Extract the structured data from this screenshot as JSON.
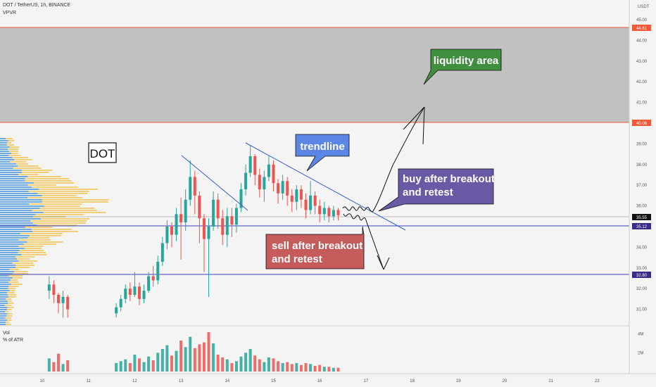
{
  "header": {
    "symbol_line": "DOT / TetherUS, 1h, BINANCE",
    "indicator": "VPVR",
    "currency": "USDT"
  },
  "volume_pane": {
    "label": "Vol",
    "sublabel": "% of ATR",
    "ticks": [
      {
        "label": "4M",
        "value": 4
      },
      {
        "label": "2M",
        "value": 2
      }
    ]
  },
  "colors": {
    "up": "#26a69a",
    "down": "#ef5350",
    "zone_fill": "#b7b7b7",
    "zone_line": "#f05a3a",
    "level_line": "#3f3fb8",
    "trendline": "#3a5bd0",
    "vpvr_blue": "#3d8fd6",
    "vpvr_yellow": "#f2c14e",
    "green_box": "#3f8f3f",
    "blue_box": "#5b86e5",
    "purple_box": "#6a5aa6",
    "red_box": "#c65b5b"
  },
  "annotations": {
    "dot_label": "DOT",
    "liquidity": "liquidity area",
    "trendline": "trendline",
    "buy": [
      "buy after breakout",
      "and retest"
    ],
    "sell": [
      "sell after breakout",
      "and retest"
    ]
  },
  "price_tags": {
    "t4461": "44.61",
    "t4006": "40.06",
    "t3555": "35.55",
    "t3512": "35.12",
    "t3280": "32.80"
  },
  "chart_data": {
    "type": "candlestick",
    "symbol": "DOT / TetherUS",
    "timeframe": "1h",
    "exchange": "BINANCE",
    "y_axis": {
      "unit": "USDT",
      "range": [
        30.4,
        45.4
      ],
      "ticks": [
        45.0,
        44.0,
        43.0,
        42.0,
        41.0,
        40.0,
        39.0,
        38.0,
        37.0,
        36.0,
        35.0,
        34.0,
        33.0,
        32.0,
        31.0
      ]
    },
    "x_axis": {
      "ticks": [
        "10",
        "11",
        "12",
        "13",
        "14",
        "15",
        "16",
        "17",
        "18",
        "19",
        "20",
        "21",
        "22"
      ],
      "range_days": [
        9.5,
        22.5
      ]
    },
    "levels": [
      {
        "price": 44.61,
        "style": "zone-top"
      },
      {
        "price": 40.06,
        "style": "zone-bottom"
      },
      {
        "price": 35.55,
        "style": "current"
      },
      {
        "price": 35.12,
        "style": "support"
      },
      {
        "price": 32.8,
        "style": "support"
      }
    ],
    "liquidity_zone": [
      40.06,
      44.61
    ],
    "trendlines": [
      {
        "from": [
          13.2,
          38.3
        ],
        "to": [
          14.5,
          35.8
        ]
      },
      {
        "from": [
          14.4,
          39.2
        ],
        "to": [
          16.9,
          35.2
        ]
      }
    ],
    "candles": [
      {
        "day": 10.15,
        "o": 31.9,
        "c": 32.2,
        "h": 32.6,
        "l": 31.5
      },
      {
        "day": 10.25,
        "o": 32.2,
        "c": 31.7,
        "h": 32.4,
        "l": 31.3
      },
      {
        "day": 10.35,
        "o": 31.7,
        "c": 31.3,
        "h": 31.8,
        "l": 30.8
      },
      {
        "day": 10.45,
        "o": 31.3,
        "c": 31.6,
        "h": 31.9,
        "l": 30.6
      },
      {
        "day": 10.55,
        "o": 31.6,
        "c": 31.0,
        "h": 31.7,
        "l": 30.6
      },
      {
        "day": 11.6,
        "o": 30.8,
        "c": 31.1,
        "h": 31.3,
        "l": 30.6
      },
      {
        "day": 11.7,
        "o": 31.1,
        "c": 31.5,
        "h": 31.7,
        "l": 30.9
      },
      {
        "day": 11.8,
        "o": 31.5,
        "c": 32.0,
        "h": 32.2,
        "l": 31.3
      },
      {
        "day": 11.9,
        "o": 32.0,
        "c": 31.7,
        "h": 32.3,
        "l": 31.4
      },
      {
        "day": 12.0,
        "o": 31.7,
        "c": 32.1,
        "h": 32.8,
        "l": 31.6
      },
      {
        "day": 12.1,
        "o": 32.1,
        "c": 31.5,
        "h": 32.3,
        "l": 31.2
      },
      {
        "day": 12.2,
        "o": 31.5,
        "c": 31.9,
        "h": 32.2,
        "l": 31.3
      },
      {
        "day": 12.3,
        "o": 31.9,
        "c": 32.6,
        "h": 32.8,
        "l": 31.8
      },
      {
        "day": 12.4,
        "o": 32.6,
        "c": 32.4,
        "h": 33.1,
        "l": 32.1
      },
      {
        "day": 12.5,
        "o": 32.4,
        "c": 33.3,
        "h": 33.6,
        "l": 32.2
      },
      {
        "day": 12.6,
        "o": 33.3,
        "c": 34.2,
        "h": 34.5,
        "l": 33.1
      },
      {
        "day": 12.7,
        "o": 34.2,
        "c": 35.0,
        "h": 35.3,
        "l": 33.9
      },
      {
        "day": 12.8,
        "o": 35.0,
        "c": 34.6,
        "h": 35.2,
        "l": 34.0
      },
      {
        "day": 12.9,
        "o": 34.6,
        "c": 35.6,
        "h": 35.9,
        "l": 34.3
      },
      {
        "day": 13.0,
        "o": 35.6,
        "c": 35.2,
        "h": 36.4,
        "l": 33.4
      },
      {
        "day": 13.1,
        "o": 35.2,
        "c": 36.3,
        "h": 36.8,
        "l": 34.8
      },
      {
        "day": 13.2,
        "o": 36.3,
        "c": 37.4,
        "h": 38.2,
        "l": 36.0
      },
      {
        "day": 13.3,
        "o": 37.4,
        "c": 36.5,
        "h": 37.7,
        "l": 35.6
      },
      {
        "day": 13.4,
        "o": 36.5,
        "c": 35.4,
        "h": 36.7,
        "l": 34.2
      },
      {
        "day": 13.5,
        "o": 35.4,
        "c": 34.4,
        "h": 35.6,
        "l": 32.8
      },
      {
        "day": 13.6,
        "o": 34.4,
        "c": 35.0,
        "h": 35.4,
        "l": 31.6
      },
      {
        "day": 13.7,
        "o": 35.0,
        "c": 36.3,
        "h": 36.7,
        "l": 34.8
      },
      {
        "day": 13.8,
        "o": 36.3,
        "c": 35.4,
        "h": 36.6,
        "l": 34.9
      },
      {
        "day": 13.9,
        "o": 35.4,
        "c": 34.6,
        "h": 35.8,
        "l": 34.1
      },
      {
        "day": 14.0,
        "o": 34.6,
        "c": 35.5,
        "h": 35.9,
        "l": 34.0
      },
      {
        "day": 14.1,
        "o": 35.5,
        "c": 35.1,
        "h": 35.9,
        "l": 34.5
      },
      {
        "day": 14.2,
        "o": 35.1,
        "c": 35.9,
        "h": 36.1,
        "l": 34.7
      },
      {
        "day": 14.3,
        "o": 35.9,
        "c": 36.8,
        "h": 37.1,
        "l": 35.7
      },
      {
        "day": 14.4,
        "o": 36.8,
        "c": 37.6,
        "h": 38.0,
        "l": 36.5
      },
      {
        "day": 14.5,
        "o": 37.6,
        "c": 38.4,
        "h": 38.9,
        "l": 37.4
      },
      {
        "day": 14.6,
        "o": 38.4,
        "c": 37.5,
        "h": 38.5,
        "l": 37.0
      },
      {
        "day": 14.7,
        "o": 37.5,
        "c": 36.8,
        "h": 37.8,
        "l": 36.4
      },
      {
        "day": 14.8,
        "o": 36.8,
        "c": 37.4,
        "h": 37.7,
        "l": 36.2
      },
      {
        "day": 14.9,
        "o": 37.4,
        "c": 38.0,
        "h": 38.4,
        "l": 37.2
      },
      {
        "day": 15.0,
        "o": 38.0,
        "c": 37.1,
        "h": 38.2,
        "l": 36.7
      },
      {
        "day": 15.1,
        "o": 37.1,
        "c": 36.6,
        "h": 37.3,
        "l": 36.1
      },
      {
        "day": 15.2,
        "o": 36.6,
        "c": 37.2,
        "h": 37.5,
        "l": 36.3
      },
      {
        "day": 15.3,
        "o": 37.2,
        "c": 36.5,
        "h": 37.4,
        "l": 36.0
      },
      {
        "day": 15.4,
        "o": 36.5,
        "c": 36.2,
        "h": 36.8,
        "l": 35.7
      },
      {
        "day": 15.5,
        "o": 36.2,
        "c": 36.8,
        "h": 37.0,
        "l": 35.8
      },
      {
        "day": 15.6,
        "o": 36.8,
        "c": 36.3,
        "h": 37.0,
        "l": 35.9
      },
      {
        "day": 15.7,
        "o": 36.3,
        "c": 35.8,
        "h": 36.6,
        "l": 35.4
      },
      {
        "day": 15.8,
        "o": 35.8,
        "c": 36.5,
        "h": 37.2,
        "l": 35.6
      },
      {
        "day": 15.9,
        "o": 36.5,
        "c": 36.0,
        "h": 36.7,
        "l": 35.6
      },
      {
        "day": 16.0,
        "o": 36.0,
        "c": 35.6,
        "h": 36.3,
        "l": 35.2
      },
      {
        "day": 16.1,
        "o": 35.6,
        "c": 35.9,
        "h": 36.2,
        "l": 35.3
      },
      {
        "day": 16.2,
        "o": 35.9,
        "c": 35.5,
        "h": 36.0,
        "l": 35.2
      },
      {
        "day": 16.3,
        "o": 35.5,
        "c": 35.8,
        "h": 36.0,
        "l": 35.3
      },
      {
        "day": 16.4,
        "o": 35.8,
        "c": 35.55,
        "h": 35.9,
        "l": 35.3
      }
    ],
    "volume": [
      {
        "day": 10.15,
        "v": 1.4,
        "up": true
      },
      {
        "day": 10.25,
        "v": 1.0,
        "up": false
      },
      {
        "day": 10.35,
        "v": 1.9,
        "up": false
      },
      {
        "day": 10.45,
        "v": 0.8,
        "up": true
      },
      {
        "day": 10.55,
        "v": 1.2,
        "up": false
      },
      {
        "day": 11.6,
        "v": 0.9,
        "up": true
      },
      {
        "day": 11.7,
        "v": 1.1,
        "up": true
      },
      {
        "day": 11.8,
        "v": 1.3,
        "up": true
      },
      {
        "day": 11.9,
        "v": 0.9,
        "up": false
      },
      {
        "day": 12.0,
        "v": 1.8,
        "up": true
      },
      {
        "day": 12.1,
        "v": 1.4,
        "up": false
      },
      {
        "day": 12.2,
        "v": 1.0,
        "up": true
      },
      {
        "day": 12.3,
        "v": 1.6,
        "up": true
      },
      {
        "day": 12.4,
        "v": 1.2,
        "up": false
      },
      {
        "day": 12.5,
        "v": 2.0,
        "up": true
      },
      {
        "day": 12.6,
        "v": 2.4,
        "up": true
      },
      {
        "day": 12.7,
        "v": 2.8,
        "up": true
      },
      {
        "day": 12.8,
        "v": 1.7,
        "up": false
      },
      {
        "day": 12.9,
        "v": 2.2,
        "up": true
      },
      {
        "day": 13.0,
        "v": 3.3,
        "up": false
      },
      {
        "day": 13.1,
        "v": 2.6,
        "up": true
      },
      {
        "day": 13.2,
        "v": 3.7,
        "up": true
      },
      {
        "day": 13.3,
        "v": 2.5,
        "up": false
      },
      {
        "day": 13.4,
        "v": 2.9,
        "up": false
      },
      {
        "day": 13.5,
        "v": 3.1,
        "up": false
      },
      {
        "day": 13.6,
        "v": 4.2,
        "up": false
      },
      {
        "day": 13.7,
        "v": 3.0,
        "up": true
      },
      {
        "day": 13.8,
        "v": 1.8,
        "up": false
      },
      {
        "day": 13.9,
        "v": 1.5,
        "up": false
      },
      {
        "day": 14.0,
        "v": 1.3,
        "up": true
      },
      {
        "day": 14.1,
        "v": 0.9,
        "up": false
      },
      {
        "day": 14.2,
        "v": 1.1,
        "up": true
      },
      {
        "day": 14.3,
        "v": 1.6,
        "up": true
      },
      {
        "day": 14.4,
        "v": 2.0,
        "up": true
      },
      {
        "day": 14.5,
        "v": 2.4,
        "up": true
      },
      {
        "day": 14.6,
        "v": 1.7,
        "up": false
      },
      {
        "day": 14.7,
        "v": 1.3,
        "up": false
      },
      {
        "day": 14.8,
        "v": 1.0,
        "up": true
      },
      {
        "day": 14.9,
        "v": 1.5,
        "up": true
      },
      {
        "day": 15.0,
        "v": 1.4,
        "up": false
      },
      {
        "day": 15.1,
        "v": 1.1,
        "up": false
      },
      {
        "day": 15.2,
        "v": 0.9,
        "up": true
      },
      {
        "day": 15.3,
        "v": 1.0,
        "up": false
      },
      {
        "day": 15.4,
        "v": 0.8,
        "up": false
      },
      {
        "day": 15.5,
        "v": 0.9,
        "up": true
      },
      {
        "day": 15.6,
        "v": 0.7,
        "up": false
      },
      {
        "day": 15.7,
        "v": 0.9,
        "up": false
      },
      {
        "day": 15.8,
        "v": 0.8,
        "up": true
      },
      {
        "day": 15.9,
        "v": 0.6,
        "up": false
      },
      {
        "day": 16.0,
        "v": 0.7,
        "up": false
      },
      {
        "day": 16.1,
        "v": 0.5,
        "up": true
      },
      {
        "day": 16.2,
        "v": 0.5,
        "up": false
      },
      {
        "day": 16.3,
        "v": 0.4,
        "up": true
      },
      {
        "day": 16.4,
        "v": 0.4,
        "up": false
      }
    ]
  }
}
